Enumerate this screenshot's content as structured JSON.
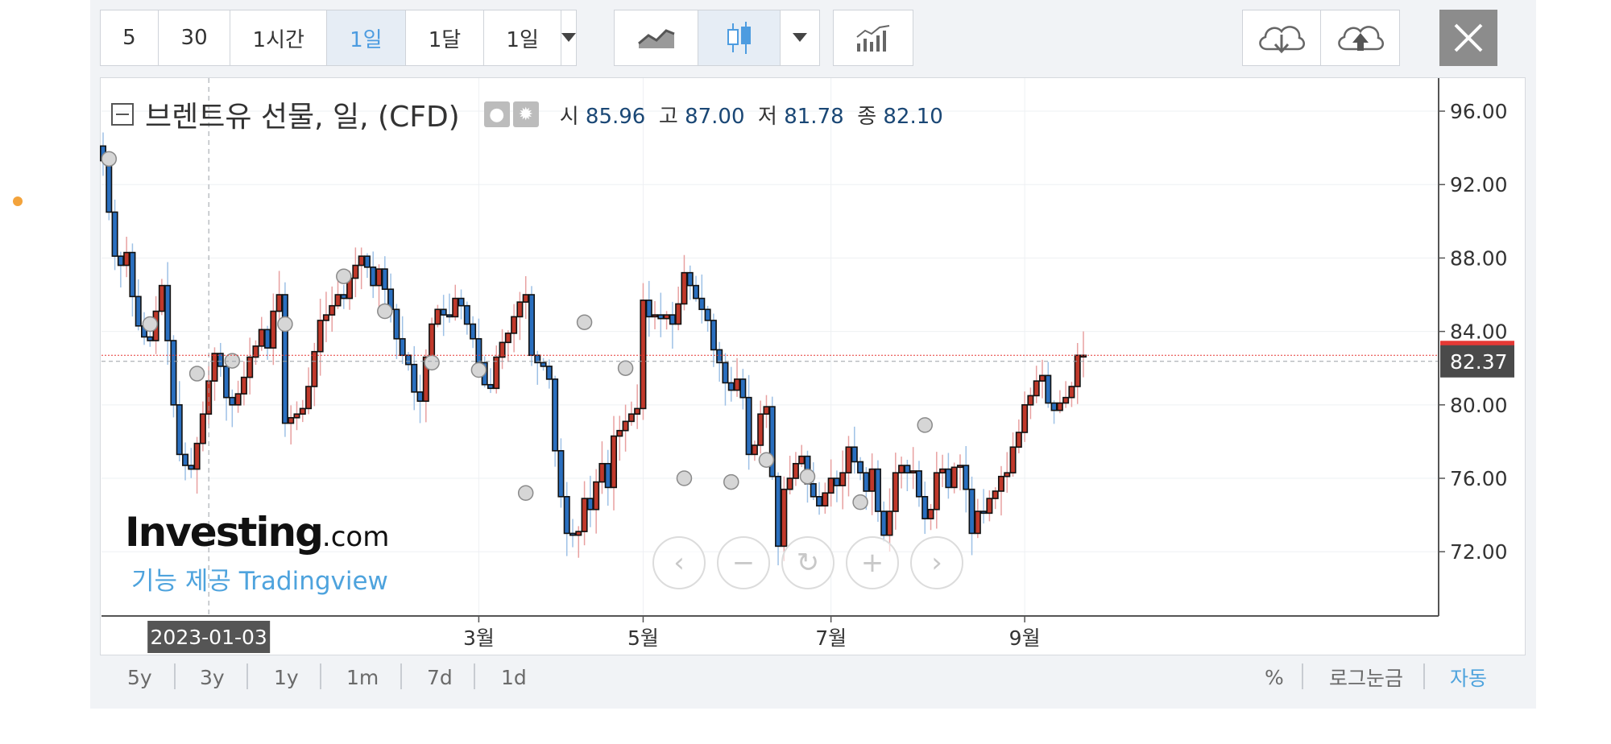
{
  "toolbar": {
    "intervals": [
      "5",
      "30",
      "1시간",
      "1일",
      "1달",
      "1일"
    ],
    "active_interval_index": 3
  },
  "legend": {
    "title": "브렌트유 선물, 일, (CFD)",
    "open_label": "시",
    "open": "85.96",
    "high_label": "고",
    "high": "87.00",
    "low_label": "저",
    "low": "81.78",
    "close_label": "종",
    "close": "82.10"
  },
  "watermark": {
    "logo": "Investing",
    "logo_suffix": ".com",
    "provider": "기능 제공 Tradingview"
  },
  "price_label": "82.37",
  "crosshair_date": "2023-01-03",
  "timeframes": [
    "5y",
    "3y",
    "1y",
    "1m",
    "7d",
    "1d"
  ],
  "right_options": [
    "%",
    "로그눈금",
    "자동"
  ],
  "colors": {
    "up": "#c0392b",
    "down": "#2a6fbf",
    "price_line": "#e53935",
    "accent": "#4ea3dd"
  },
  "chart_data": {
    "type": "candlestick",
    "y_ticks": [
      "96.00",
      "92.00",
      "88.00",
      "84.00",
      "80.00",
      "76.00",
      "72.00"
    ],
    "x_ticks": [
      "3월",
      "5월",
      "7월",
      "9월"
    ],
    "ylim": [
      68.5,
      97.8
    ],
    "current_price": 82.37,
    "last_close": 82.7,
    "closes": [
      93.3,
      90.5,
      88.1,
      87.6,
      88.3,
      85.9,
      84.3,
      83.7,
      83.5,
      85.1,
      86.5,
      83.5,
      80.0,
      77.3,
      76.7,
      76.5,
      77.9,
      79.5,
      81.3,
      82.8,
      82.1,
      80.4,
      80.0,
      80.6,
      81.5,
      82.6,
      83.2,
      84.1,
      83.1,
      85.1,
      86.0,
      79.0,
      79.3,
      79.5,
      79.8,
      81.0,
      82.9,
      84.6,
      84.9,
      85.4,
      86.0,
      85.8,
      86.9,
      87.6,
      88.1,
      87.5,
      86.5,
      87.4,
      86.3,
      85.2,
      83.6,
      82.7,
      82.2,
      80.7,
      80.2,
      82.6,
      84.4,
      85.2,
      84.9,
      84.8,
      85.8,
      85.4,
      84.4,
      83.6,
      82.3,
      81.1,
      80.9,
      82.6,
      83.4,
      83.9,
      84.8,
      85.6,
      86.0,
      82.7,
      82.3,
      82.1,
      81.4,
      77.5,
      75.0,
      73.0,
      72.9,
      73.1,
      74.9,
      74.3,
      75.8,
      76.8,
      75.5,
      78.3,
      78.6,
      79.1,
      79.5,
      79.8,
      85.7,
      84.8,
      84.9,
      84.7,
      84.9,
      84.4,
      85.5,
      87.2,
      86.5,
      85.8,
      85.2,
      84.6,
      83.0,
      82.3,
      81.2,
      80.8,
      81.4,
      80.4,
      77.3,
      77.8,
      79.5,
      79.9,
      76.1,
      72.3,
      75.4,
      76.0,
      76.8,
      77.2,
      75.7,
      75.0,
      74.5,
      75.2,
      76.0,
      75.6,
      76.3,
      77.7,
      76.9,
      76.3,
      75.3,
      76.5,
      74.2,
      72.9,
      74.2,
      76.3,
      76.7,
      76.3,
      76.4,
      75.0,
      73.8,
      74.3,
      76.3,
      76.5,
      75.5,
      76.6,
      76.7,
      75.4,
      73.0,
      74.2,
      74.1,
      74.9,
      75.3,
      76.1,
      76.3,
      77.7,
      78.5,
      80.0,
      80.5,
      81.3,
      81.6,
      80.1,
      79.7,
      80.1,
      80.4,
      81.0,
      82.7,
      82.7
    ],
    "markers": [
      [
        1,
        93.4
      ],
      [
        8,
        84.4
      ],
      [
        16,
        81.7
      ],
      [
        22,
        82.4
      ],
      [
        31,
        84.4
      ],
      [
        41,
        87.0
      ],
      [
        48,
        85.1
      ],
      [
        56,
        82.3
      ],
      [
        64,
        81.9
      ],
      [
        72,
        75.2
      ],
      [
        82,
        84.5
      ],
      [
        89,
        82.0
      ],
      [
        99,
        76.0
      ],
      [
        107,
        75.8
      ],
      [
        113,
        77.0
      ],
      [
        120,
        76.1
      ],
      [
        129,
        74.7
      ],
      [
        140,
        78.9
      ]
    ]
  }
}
